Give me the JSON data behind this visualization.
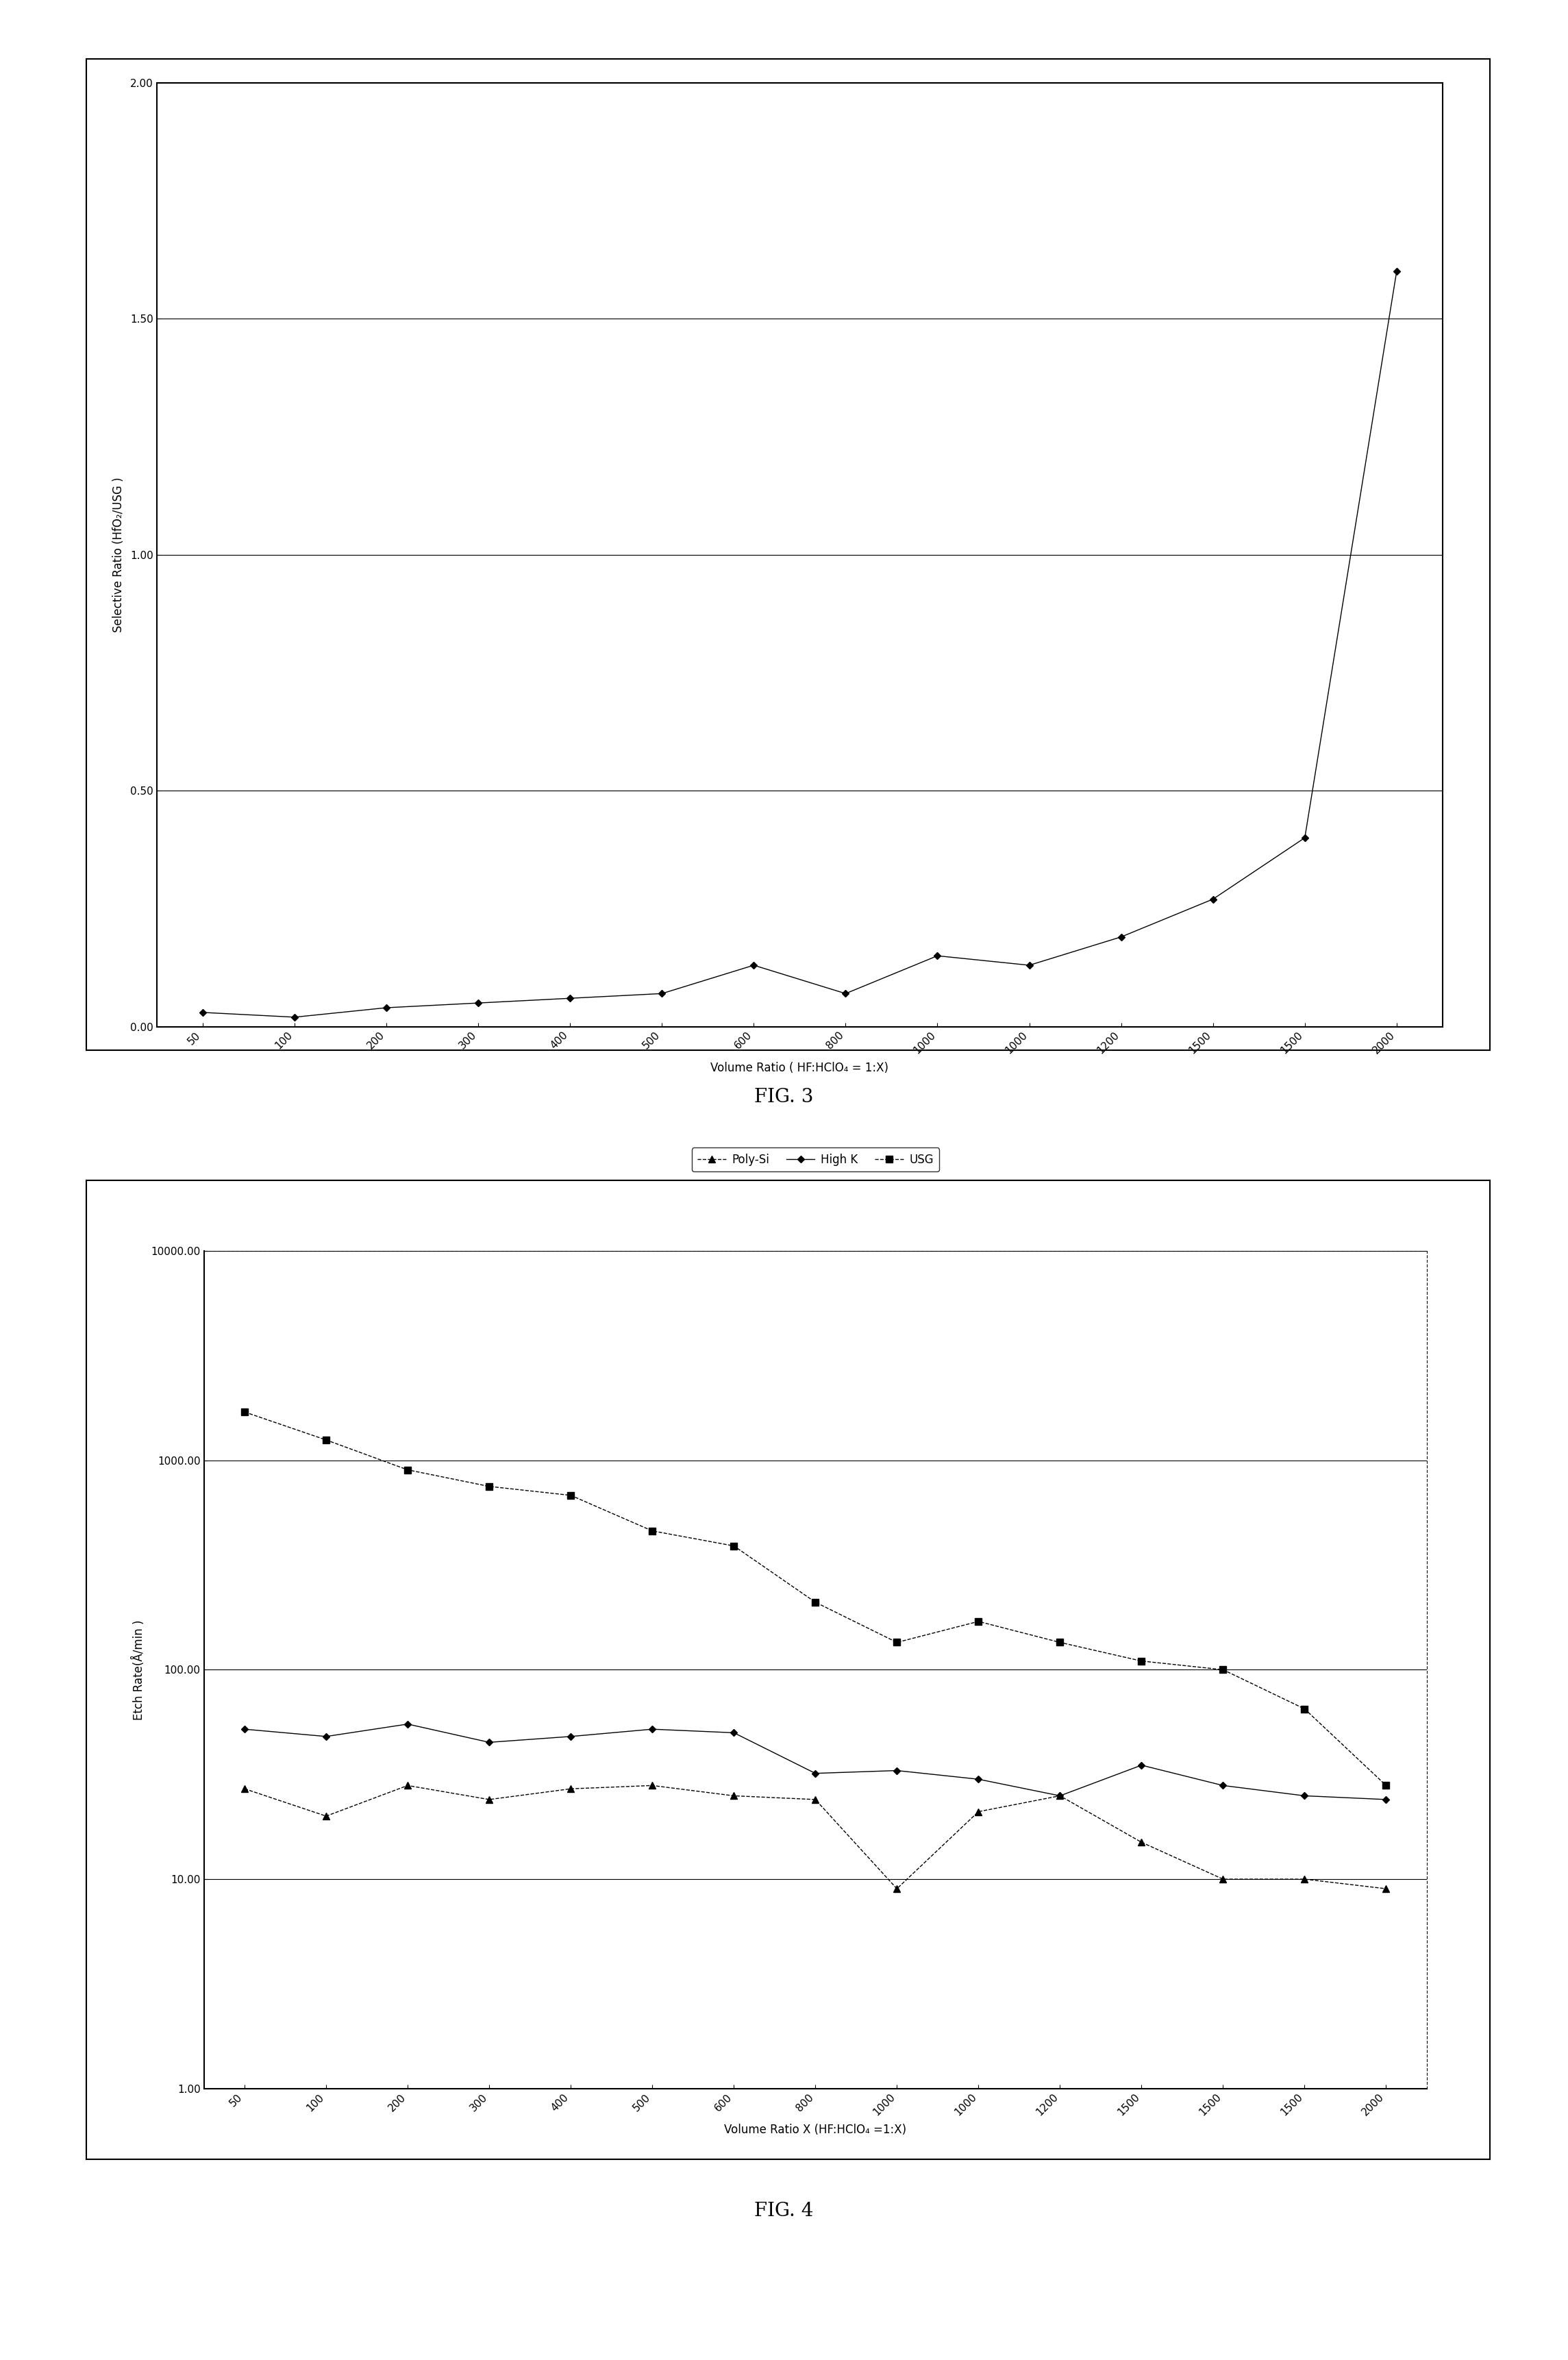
{
  "fig3": {
    "caption": "FIG. 3",
    "xlabel": "Volume Ratio ( HF:HClO₄ = 1:X)",
    "ylabel": "Selective Ratio (HfO₂/USG )",
    "x_values": [
      50,
      100,
      200,
      300,
      400,
      500,
      600,
      800,
      1000,
      1000,
      1200,
      1500,
      1500,
      2000
    ],
    "y_values": [
      0.03,
      0.02,
      0.04,
      0.05,
      0.06,
      0.07,
      0.13,
      0.07,
      0.15,
      0.13,
      0.19,
      0.27,
      0.4,
      1.6
    ],
    "yticks": [
      0.0,
      0.5,
      1.0,
      1.5,
      2.0
    ],
    "ylim": [
      0.0,
      2.0
    ],
    "xtick_labels": [
      "50",
      "100",
      "200",
      "300",
      "400",
      "500",
      "600",
      "800",
      "1000",
      "1000",
      "1200",
      "1500",
      "1500",
      "2000"
    ]
  },
  "fig4": {
    "caption": "FIG. 4",
    "xlabel": "Volume Ratio X (HF:HClO₄ =1:X)",
    "ylabel": "Etch Rate(Å/min )",
    "x_values": [
      50,
      100,
      200,
      300,
      400,
      500,
      600,
      800,
      1000,
      1000,
      1200,
      1500,
      1500,
      1500,
      2000
    ],
    "poly_si": [
      27,
      20,
      28,
      24,
      27,
      28,
      25,
      24,
      9.0,
      21,
      25,
      15,
      10,
      10,
      9
    ],
    "high_k": [
      52,
      48,
      55,
      45,
      48,
      52,
      50,
      32,
      33,
      30,
      25,
      35,
      28,
      25,
      24
    ],
    "usg": [
      1700,
      1250,
      900,
      750,
      680,
      460,
      390,
      210,
      135,
      170,
      135,
      110,
      100,
      65,
      28
    ],
    "xtick_labels": [
      "50",
      "100",
      "200",
      "300",
      "400",
      "500",
      "600",
      "800",
      "1000",
      "1000",
      "1200",
      "1500",
      "1500",
      "1500",
      "2000"
    ],
    "ytick_labels": [
      "1.00",
      "10.00",
      "100.00",
      "1000.00",
      "10000.00"
    ],
    "ytick_vals": [
      1.0,
      10.0,
      100.0,
      1000.0,
      10000.0
    ],
    "ylim_log": [
      1.0,
      10000.0
    ]
  },
  "bg_color": "#ffffff",
  "line_color": "#000000"
}
